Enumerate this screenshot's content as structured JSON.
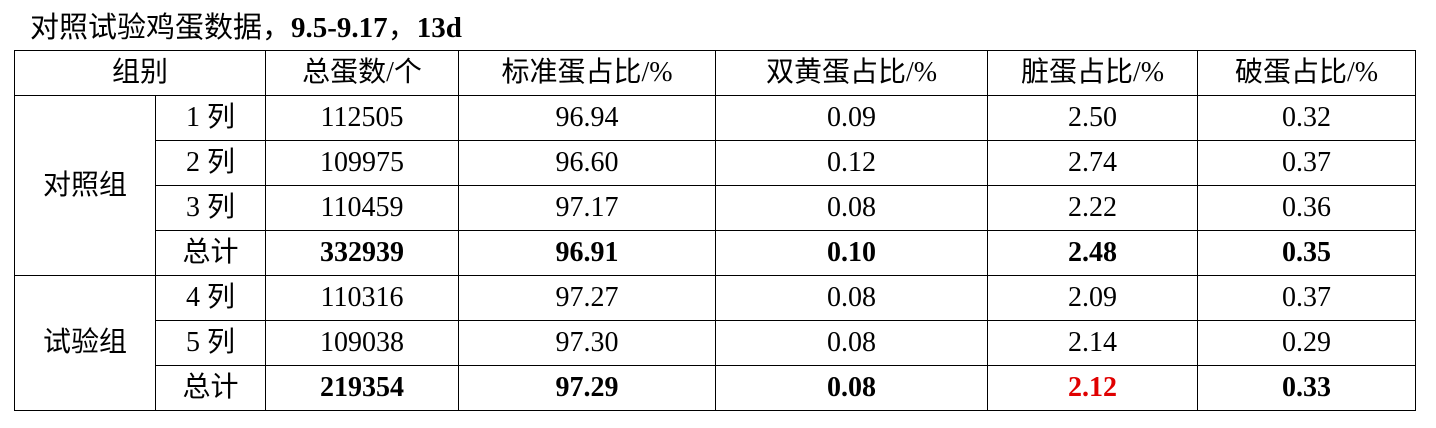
{
  "title": {
    "text": "对照试验鸡蛋数据，",
    "range": "9.5-9.17",
    "sep": "，",
    "days": "13d"
  },
  "headers": [
    "组别",
    "总蛋数/个",
    "标准蛋占比/%",
    "双黄蛋占比/%",
    "脏蛋占比/%",
    "破蛋占比/%"
  ],
  "groups": [
    {
      "name": "对照组",
      "rows": [
        [
          "1 列",
          "112505",
          "96.94",
          "0.09",
          "2.50",
          "0.32"
        ],
        [
          "2 列",
          "109975",
          "96.60",
          "0.12",
          "2.74",
          "0.37"
        ],
        [
          "3 列",
          "110459",
          "97.17",
          "0.08",
          "2.22",
          "0.36"
        ],
        [
          "总计",
          "332939",
          "96.91",
          "0.10",
          "2.48",
          "0.35"
        ]
      ]
    },
    {
      "name": "试验组",
      "rows": [
        [
          "4 列",
          "110316",
          "97.27",
          "0.08",
          "2.09",
          "0.37"
        ],
        [
          "5 列",
          "109038",
          "97.30",
          "0.08",
          "2.14",
          "0.29"
        ],
        [
          "总计",
          "219354",
          "97.29",
          "0.08",
          "2.12",
          "0.33"
        ]
      ]
    }
  ],
  "highlight_color": "#e00000"
}
